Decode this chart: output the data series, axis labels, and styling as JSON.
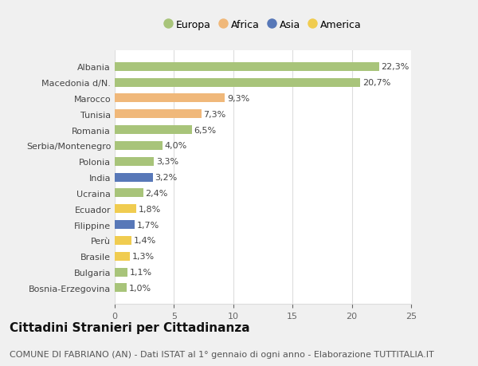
{
  "categories": [
    "Bosnia-Erzegovina",
    "Bulgaria",
    "Brasile",
    "Perù",
    "Filippine",
    "Ecuador",
    "Ucraina",
    "India",
    "Polonia",
    "Serbia/Montenegro",
    "Romania",
    "Tunisia",
    "Marocco",
    "Macedonia d/N.",
    "Albania"
  ],
  "values": [
    1.0,
    1.1,
    1.3,
    1.4,
    1.7,
    1.8,
    2.4,
    3.2,
    3.3,
    4.0,
    6.5,
    7.3,
    9.3,
    20.7,
    22.3
  ],
  "labels": [
    "1,0%",
    "1,1%",
    "1,3%",
    "1,4%",
    "1,7%",
    "1,8%",
    "2,4%",
    "3,2%",
    "3,3%",
    "4,0%",
    "6,5%",
    "7,3%",
    "9,3%",
    "20,7%",
    "22,3%"
  ],
  "continents": [
    "Europa",
    "Europa",
    "America",
    "America",
    "Asia",
    "America",
    "Europa",
    "Asia",
    "Europa",
    "Europa",
    "Europa",
    "Africa",
    "Africa",
    "Europa",
    "Europa"
  ],
  "colors": {
    "Europa": "#a8c47a",
    "Africa": "#f0b87a",
    "Asia": "#5878b8",
    "America": "#f0cc50"
  },
  "legend_order": [
    "Europa",
    "Africa",
    "Asia",
    "America"
  ],
  "xlim": [
    0,
    25
  ],
  "xticks": [
    0,
    5,
    10,
    15,
    20,
    25
  ],
  "title": "Cittadini Stranieri per Cittadinanza",
  "subtitle": "COMUNE DI FABRIANO (AN) - Dati ISTAT al 1° gennaio di ogni anno - Elaborazione TUTTITALIA.IT",
  "background_color": "#f0f0f0",
  "bar_background": "#ffffff",
  "grid_color": "#dddddd",
  "label_fontsize": 8,
  "tick_fontsize": 8,
  "legend_fontsize": 9,
  "title_fontsize": 11,
  "subtitle_fontsize": 8
}
